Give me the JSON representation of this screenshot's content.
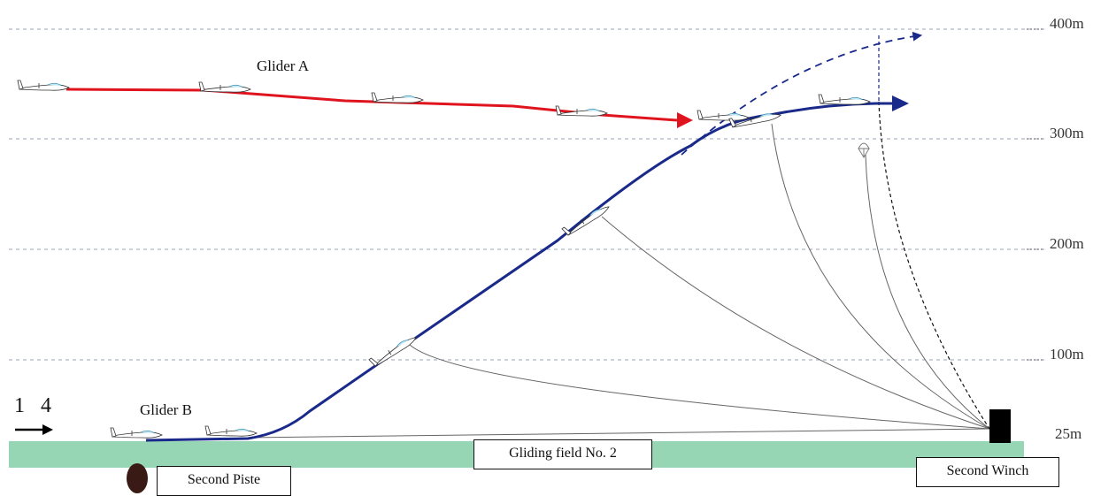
{
  "altitudes": [
    {
      "label": "400m"
    },
    {
      "label": "300m"
    },
    {
      "label": "200m"
    },
    {
      "label": "100m"
    },
    {
      "label": "25m"
    }
  ],
  "glider_a": {
    "label": "Glider A",
    "color": "#e0141e"
  },
  "glider_b": {
    "label": "Glider B",
    "color": "#1a2a8a"
  },
  "runway_number": "1 4",
  "gliding_field": "Gliding field No. 2",
  "piste": "Second Piste",
  "winch": "Second Winch",
  "colors": {
    "field": "#96d6b4",
    "grid": "#9aa3b8",
    "cable": "#666666",
    "winch": "#000000"
  },
  "icons": [
    "glider-icon",
    "wind-arrow-icon",
    "parachute-icon",
    "winch-icon",
    "piste-marker-icon"
  ]
}
